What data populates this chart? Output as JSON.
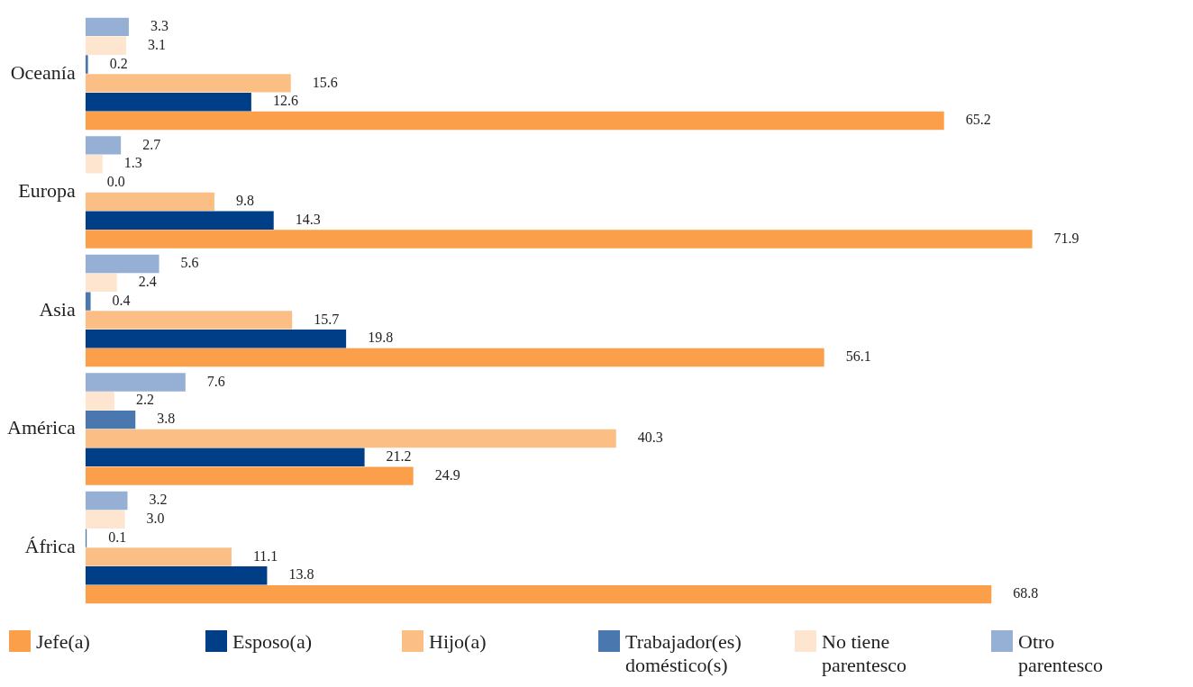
{
  "chart_data": {
    "type": "bar",
    "orientation": "horizontal",
    "categories": [
      "Oceanía",
      "Europa",
      "Asia",
      "América",
      "África"
    ],
    "series": [
      {
        "name": "Jefe(a)",
        "color": "#fb9f4a",
        "values": [
          65.2,
          71.9,
          56.1,
          24.9,
          68.8
        ],
        "value_labels": [
          "65.2",
          "71.9",
          "56.1",
          "24.9",
          "68.8"
        ]
      },
      {
        "name": "Esposo(a)",
        "color": "#003f87",
        "values": [
          12.6,
          14.3,
          19.8,
          21.2,
          13.8
        ],
        "value_labels": [
          "12.6",
          "14.3",
          "19.8",
          "21.2",
          "13.8"
        ]
      },
      {
        "name": "Hijo(a)",
        "color": "#fbbf86",
        "values": [
          15.6,
          9.8,
          15.7,
          40.3,
          11.1
        ],
        "value_labels": [
          "15.6",
          "9.8",
          "15.7",
          "40.3",
          "11.1"
        ]
      },
      {
        "name": "Trabajador(es) doméstico(s)",
        "color": "#4a77ad",
        "values": [
          0.2,
          0,
          0.4,
          3.8,
          0.1
        ],
        "value_labels": [
          "0.2",
          "0.0",
          "0.4",
          "3.8",
          "0.1"
        ]
      },
      {
        "name": "No tiene parentesco",
        "color": "#fde5d0",
        "values": [
          3.1,
          1.3,
          2.4,
          2.2,
          3
        ],
        "value_labels": [
          "3.1",
          "1.3",
          "2.4",
          "2.2",
          "3.0"
        ]
      },
      {
        "name": "Otro parentesco",
        "color": "#95b0d4",
        "values": [
          3.3,
          2.7,
          5.6,
          7.6,
          3.2
        ],
        "value_labels": [
          "3.3",
          "2.7",
          "5.6",
          "7.6",
          "3.2"
        ]
      }
    ],
    "grid": false,
    "legend": "bottom",
    "tick_labels": "y"
  }
}
